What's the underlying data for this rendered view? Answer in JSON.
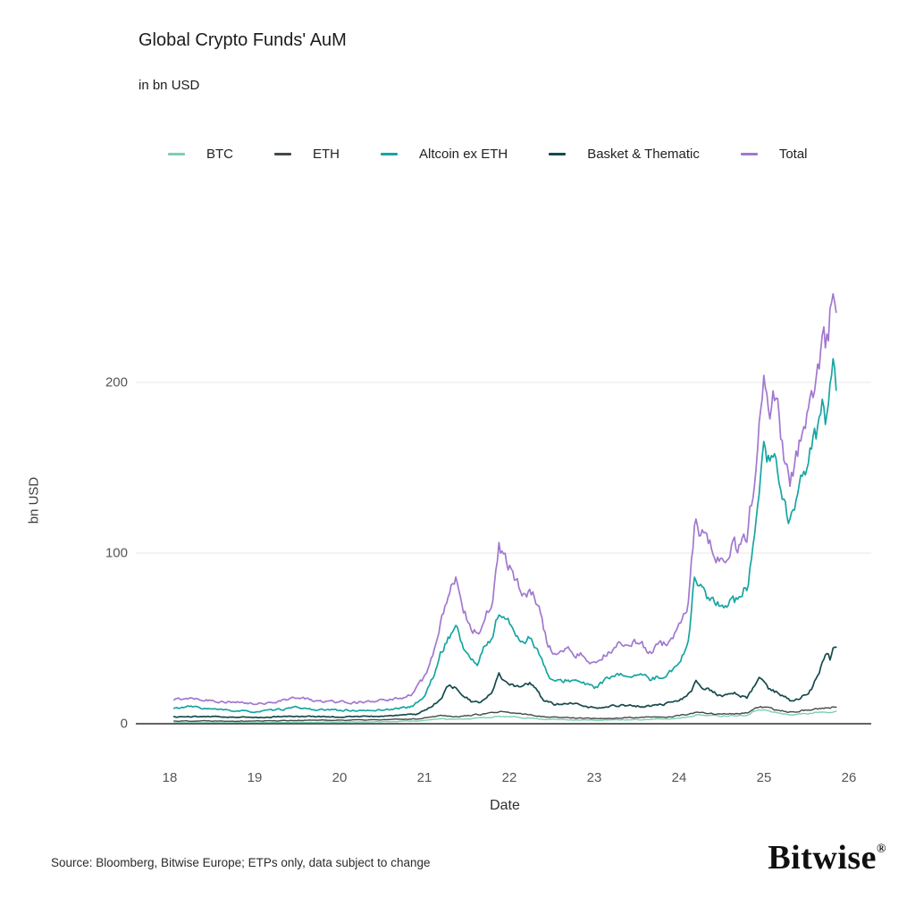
{
  "header": {
    "title": "Global Crypto Funds' AuM",
    "subtitle": "in bn USD"
  },
  "footer": {
    "source": "Source: Bloomberg, Bitwise Europe; ETPs only, data subject to change",
    "brand": "Bitwise",
    "brand_mark": "®"
  },
  "chart_data": {
    "type": "line",
    "title": "Global Crypto Funds' AuM",
    "subtitle": "in bn USD",
    "xlabel": "Date",
    "ylabel": "bn USD",
    "x_ticks": [
      18,
      19,
      20,
      21,
      22,
      23,
      24,
      25,
      26
    ],
    "y_ticks": [
      0,
      100,
      200
    ],
    "xlim": [
      17.6,
      26.25
    ],
    "ylim": [
      0,
      290
    ],
    "grid": "horizontal-only",
    "legend_position": "top",
    "colors": {
      "grid_line": "#e7e7e7",
      "zero_axis": "#4d4d4d",
      "tick_text": "#565656"
    },
    "series": [
      {
        "name": "BTC",
        "color": "#7bd0ab",
        "keypoints": [
          [
            18.05,
            0.4
          ],
          [
            18.5,
            0.5
          ],
          [
            19,
            0.6
          ],
          [
            19.5,
            0.8
          ],
          [
            20,
            0.9
          ],
          [
            20.5,
            1.1
          ],
          [
            20.9,
            1.6
          ],
          [
            21.2,
            3
          ],
          [
            21.4,
            2.6
          ],
          [
            21.9,
            4.2
          ],
          [
            22.1,
            3.8
          ],
          [
            22.45,
            2.6
          ],
          [
            22.8,
            2.3
          ],
          [
            23,
            2
          ],
          [
            23.5,
            2.4
          ],
          [
            23.9,
            2.8
          ],
          [
            24.1,
            4
          ],
          [
            24.2,
            5.2
          ],
          [
            24.5,
            4.6
          ],
          [
            24.8,
            5.2
          ],
          [
            24.95,
            8.8
          ],
          [
            25.1,
            6.8
          ],
          [
            25.3,
            5.2
          ],
          [
            25.5,
            6
          ],
          [
            25.7,
            6.8
          ],
          [
            25.85,
            7.4
          ]
        ]
      },
      {
        "name": "ETH",
        "color": "#42494b",
        "keypoints": [
          [
            18.05,
            1.6
          ],
          [
            18.5,
            1.7
          ],
          [
            19,
            1.6
          ],
          [
            19.5,
            2
          ],
          [
            20,
            2.1
          ],
          [
            20.5,
            2.3
          ],
          [
            20.9,
            2.8
          ],
          [
            21.2,
            5
          ],
          [
            21.4,
            4.2
          ],
          [
            21.9,
            6.8
          ],
          [
            22.1,
            6
          ],
          [
            22.45,
            4
          ],
          [
            22.8,
            3.4
          ],
          [
            23,
            3
          ],
          [
            23.5,
            3.6
          ],
          [
            23.9,
            4
          ],
          [
            24.1,
            5.5
          ],
          [
            24.2,
            6.5
          ],
          [
            24.5,
            5.6
          ],
          [
            24.8,
            6.4
          ],
          [
            24.95,
            9.8
          ],
          [
            25.1,
            8.4
          ],
          [
            25.3,
            7
          ],
          [
            25.5,
            8
          ],
          [
            25.7,
            9
          ],
          [
            25.85,
            9.6
          ]
        ]
      },
      {
        "name": "Altcoin ex ETH",
        "color": "#17a5a2",
        "keypoints": [
          [
            18.05,
            9
          ],
          [
            18.25,
            10
          ],
          [
            18.5,
            8.5
          ],
          [
            18.75,
            7.5
          ],
          [
            19,
            7
          ],
          [
            19.25,
            8
          ],
          [
            19.5,
            9.5
          ],
          [
            19.75,
            8
          ],
          [
            20,
            8
          ],
          [
            20.3,
            7.5
          ],
          [
            20.6,
            8.5
          ],
          [
            20.85,
            10
          ],
          [
            21,
            16
          ],
          [
            21.1,
            27
          ],
          [
            21.2,
            42
          ],
          [
            21.3,
            52
          ],
          [
            21.37,
            58
          ],
          [
            21.45,
            46
          ],
          [
            21.55,
            37
          ],
          [
            21.63,
            35
          ],
          [
            21.7,
            44
          ],
          [
            21.8,
            51
          ],
          [
            21.88,
            66
          ],
          [
            21.95,
            61
          ],
          [
            22.05,
            55
          ],
          [
            22.15,
            48
          ],
          [
            22.25,
            51
          ],
          [
            22.35,
            42
          ],
          [
            22.45,
            28
          ],
          [
            22.55,
            24
          ],
          [
            22.7,
            26
          ],
          [
            22.85,
            24
          ],
          [
            23,
            21
          ],
          [
            23.15,
            26
          ],
          [
            23.3,
            28
          ],
          [
            23.5,
            29
          ],
          [
            23.65,
            26
          ],
          [
            23.8,
            28
          ],
          [
            23.95,
            32
          ],
          [
            24.1,
            46
          ],
          [
            24.18,
            85
          ],
          [
            24.3,
            78
          ],
          [
            24.4,
            71
          ],
          [
            24.5,
            67
          ],
          [
            24.6,
            75
          ],
          [
            24.7,
            71
          ],
          [
            24.8,
            80
          ],
          [
            24.9,
            107
          ],
          [
            25,
            163
          ],
          [
            25.07,
            149
          ],
          [
            25.12,
            155
          ],
          [
            25.2,
            138
          ],
          [
            25.3,
            117
          ],
          [
            25.4,
            131
          ],
          [
            25.5,
            149
          ],
          [
            25.6,
            167
          ],
          [
            25.7,
            187
          ],
          [
            25.75,
            177
          ],
          [
            25.82,
            205
          ],
          [
            25.85,
            190
          ]
        ]
      },
      {
        "name": "Basket & Thematic",
        "color": "#154a4d",
        "keypoints": [
          [
            18.05,
            4
          ],
          [
            18.5,
            4.2
          ],
          [
            19,
            3.6
          ],
          [
            19.5,
            4.4
          ],
          [
            20,
            4
          ],
          [
            20.5,
            4.4
          ],
          [
            20.9,
            5.5
          ],
          [
            21.05,
            9
          ],
          [
            21.2,
            15
          ],
          [
            21.3,
            24
          ],
          [
            21.4,
            19
          ],
          [
            21.55,
            13
          ],
          [
            21.65,
            12
          ],
          [
            21.78,
            17
          ],
          [
            21.88,
            29
          ],
          [
            21.95,
            25
          ],
          [
            22.1,
            22
          ],
          [
            22.25,
            24
          ],
          [
            22.4,
            14
          ],
          [
            22.55,
            11
          ],
          [
            22.7,
            12
          ],
          [
            22.9,
            10
          ],
          [
            23.05,
            9
          ],
          [
            23.3,
            11
          ],
          [
            23.6,
            10
          ],
          [
            23.9,
            12
          ],
          [
            24.1,
            16
          ],
          [
            24.2,
            24
          ],
          [
            24.35,
            20
          ],
          [
            24.5,
            16
          ],
          [
            24.65,
            18
          ],
          [
            24.8,
            15
          ],
          [
            24.95,
            27
          ],
          [
            25.05,
            21
          ],
          [
            25.2,
            17
          ],
          [
            25.32,
            13
          ],
          [
            25.45,
            16
          ],
          [
            25.55,
            20
          ],
          [
            25.65,
            30
          ],
          [
            25.72,
            42
          ],
          [
            25.78,
            37
          ],
          [
            25.82,
            46
          ],
          [
            25.85,
            43
          ]
        ]
      },
      {
        "name": "Total",
        "color": "#a178cf",
        "keypoints": [
          [
            18.05,
            14
          ],
          [
            18.25,
            15.5
          ],
          [
            18.5,
            13.5
          ],
          [
            18.75,
            12.5
          ],
          [
            19,
            11.5
          ],
          [
            19.25,
            13
          ],
          [
            19.5,
            15.5
          ],
          [
            19.75,
            13
          ],
          [
            20,
            13
          ],
          [
            20.3,
            12.5
          ],
          [
            20.6,
            14
          ],
          [
            20.85,
            17
          ],
          [
            21,
            27
          ],
          [
            21.1,
            41
          ],
          [
            21.2,
            60
          ],
          [
            21.3,
            74
          ],
          [
            21.37,
            87
          ],
          [
            21.45,
            69
          ],
          [
            21.55,
            57
          ],
          [
            21.63,
            53
          ],
          [
            21.7,
            63
          ],
          [
            21.8,
            73
          ],
          [
            21.88,
            103
          ],
          [
            21.95,
            95
          ],
          [
            22.05,
            87
          ],
          [
            22.15,
            75
          ],
          [
            22.25,
            80
          ],
          [
            22.35,
            67
          ],
          [
            22.45,
            46
          ],
          [
            22.55,
            40
          ],
          [
            22.7,
            43
          ],
          [
            22.85,
            40
          ],
          [
            23,
            34
          ],
          [
            23.15,
            42
          ],
          [
            23.3,
            46
          ],
          [
            23.5,
            48
          ],
          [
            23.65,
            43
          ],
          [
            23.8,
            46
          ],
          [
            23.95,
            52
          ],
          [
            24.1,
            67
          ],
          [
            24.18,
            116
          ],
          [
            24.3,
            112
          ],
          [
            24.4,
            101
          ],
          [
            24.5,
            96
          ],
          [
            24.6,
            106
          ],
          [
            24.7,
            101
          ],
          [
            24.8,
            111
          ],
          [
            24.9,
            146
          ],
          [
            25,
            207
          ],
          [
            25.07,
            188
          ],
          [
            25.12,
            195
          ],
          [
            25.2,
            168
          ],
          [
            25.3,
            139
          ],
          [
            25.4,
            157
          ],
          [
            25.5,
            177
          ],
          [
            25.6,
            197
          ],
          [
            25.65,
            214
          ],
          [
            25.7,
            234
          ],
          [
            25.75,
            224
          ],
          [
            25.82,
            268
          ],
          [
            25.85,
            246
          ]
        ]
      }
    ]
  }
}
